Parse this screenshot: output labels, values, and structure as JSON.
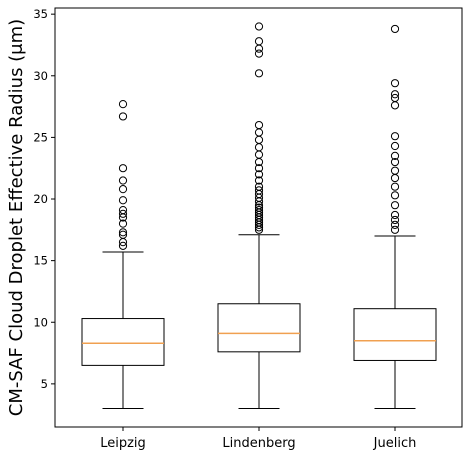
{
  "chart_data": {
    "type": "boxplot",
    "ylabel": "CM-SAF Cloud Droplet Effective Radius (μm)",
    "xlabel": "",
    "title": "",
    "categories": [
      "Leipzig",
      "Lindenberg",
      "Juelich"
    ],
    "ylim": [
      1.5,
      35.5
    ],
    "yticks": [
      5,
      10,
      15,
      20,
      25,
      30,
      35
    ],
    "grid": false,
    "colors": {
      "box": "#000000",
      "median": "#f0a050",
      "flier": "#000000"
    },
    "boxes": [
      {
        "label": "Leipzig",
        "whisker_low": 3.0,
        "q1": 6.5,
        "median": 8.3,
        "q3": 10.3,
        "whisker_high": 15.7,
        "fliers": [
          16.2,
          16.5,
          17.1,
          17.3,
          18.0,
          18.5,
          18.8,
          19.1,
          19.9,
          20.8,
          21.5,
          22.5,
          26.7,
          27.7
        ]
      },
      {
        "label": "Lindenberg",
        "whisker_low": 3.0,
        "q1": 7.6,
        "median": 9.1,
        "q3": 11.5,
        "whisker_high": 17.1,
        "fliers": [
          17.5,
          17.7,
          17.9,
          18.1,
          18.3,
          18.5,
          18.7,
          18.9,
          19.1,
          19.3,
          19.5,
          19.8,
          20.1,
          20.4,
          20.7,
          21.0,
          21.5,
          22.0,
          22.5,
          23.0,
          23.6,
          24.2,
          24.8,
          25.4,
          26.0,
          30.2,
          31.8,
          32.2,
          32.8,
          34.0
        ]
      },
      {
        "label": "Juelich",
        "whisker_low": 3.0,
        "q1": 6.9,
        "median": 8.5,
        "q3": 11.1,
        "whisker_high": 17.0,
        "fliers": [
          17.5,
          17.9,
          18.3,
          18.7,
          19.5,
          20.3,
          21.0,
          21.7,
          22.3,
          23.0,
          23.5,
          24.3,
          25.1,
          27.6,
          28.2,
          28.5,
          29.4,
          33.8
        ]
      }
    ]
  }
}
